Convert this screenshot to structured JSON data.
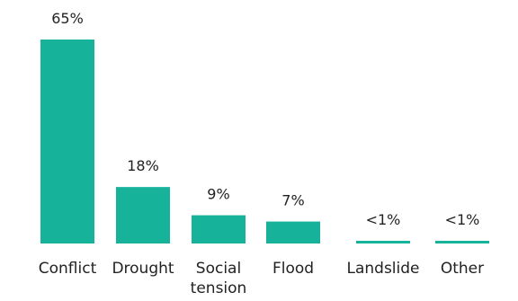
{
  "chart_data": {
    "type": "bar",
    "categories": [
      "Conflict",
      "Drought",
      "Social tension",
      "Flood",
      "Landslide",
      "Other"
    ],
    "category_lines": [
      [
        "Conflict"
      ],
      [
        "Drought"
      ],
      [
        "Social",
        "tension"
      ],
      [
        "Flood"
      ],
      [
        "Landslide"
      ],
      [
        "Other"
      ]
    ],
    "values": [
      65,
      18,
      9,
      7,
      0.5,
      0.5
    ],
    "value_labels": [
      "65%",
      "18%",
      "9%",
      "7%",
      "<1%",
      "<1%"
    ],
    "bar_color": "#16b39a",
    "ylim": [
      0,
      65
    ],
    "grid": false,
    "legend": "none"
  }
}
